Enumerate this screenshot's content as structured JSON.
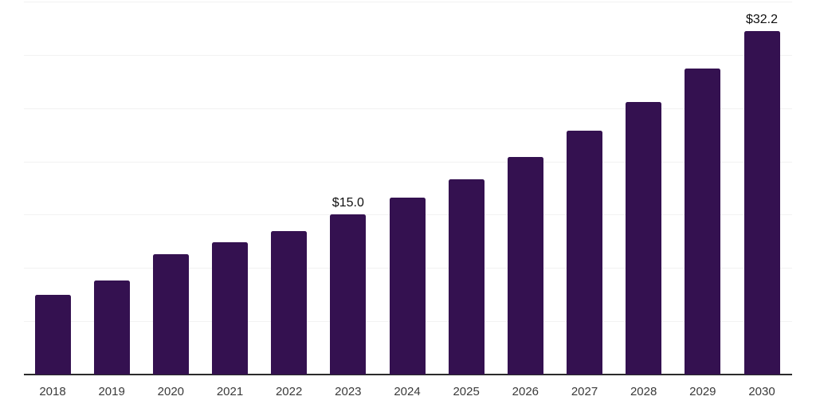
{
  "chart": {
    "background_color": "#ffffff",
    "bar_color": "#341150",
    "gridline_color": "#f2f2f2",
    "axis_line_color": "#2b2b2b",
    "tick_label_color": "#3a3a3a",
    "annotation_color": "#0f0f0f"
  },
  "chart_data": {
    "type": "bar",
    "title": "",
    "xlabel": "",
    "ylabel": "",
    "categories": [
      "2018",
      "2019",
      "2020",
      "2021",
      "2022",
      "2023",
      "2024",
      "2025",
      "2026",
      "2027",
      "2028",
      "2029",
      "2030"
    ],
    "values": [
      7.5,
      8.8,
      11.3,
      12.4,
      13.5,
      15.0,
      16.6,
      18.3,
      20.4,
      22.9,
      25.6,
      28.7,
      32.2
    ],
    "annotations": [
      {
        "category": "2023",
        "label": "$15.0"
      },
      {
        "category": "2030",
        "label": "$32.2"
      }
    ],
    "ylim": [
      0,
      35
    ],
    "gridline_step": 5,
    "grid": true,
    "y_axis_labels_visible": false,
    "legend": "none",
    "value_prefix": "$"
  }
}
